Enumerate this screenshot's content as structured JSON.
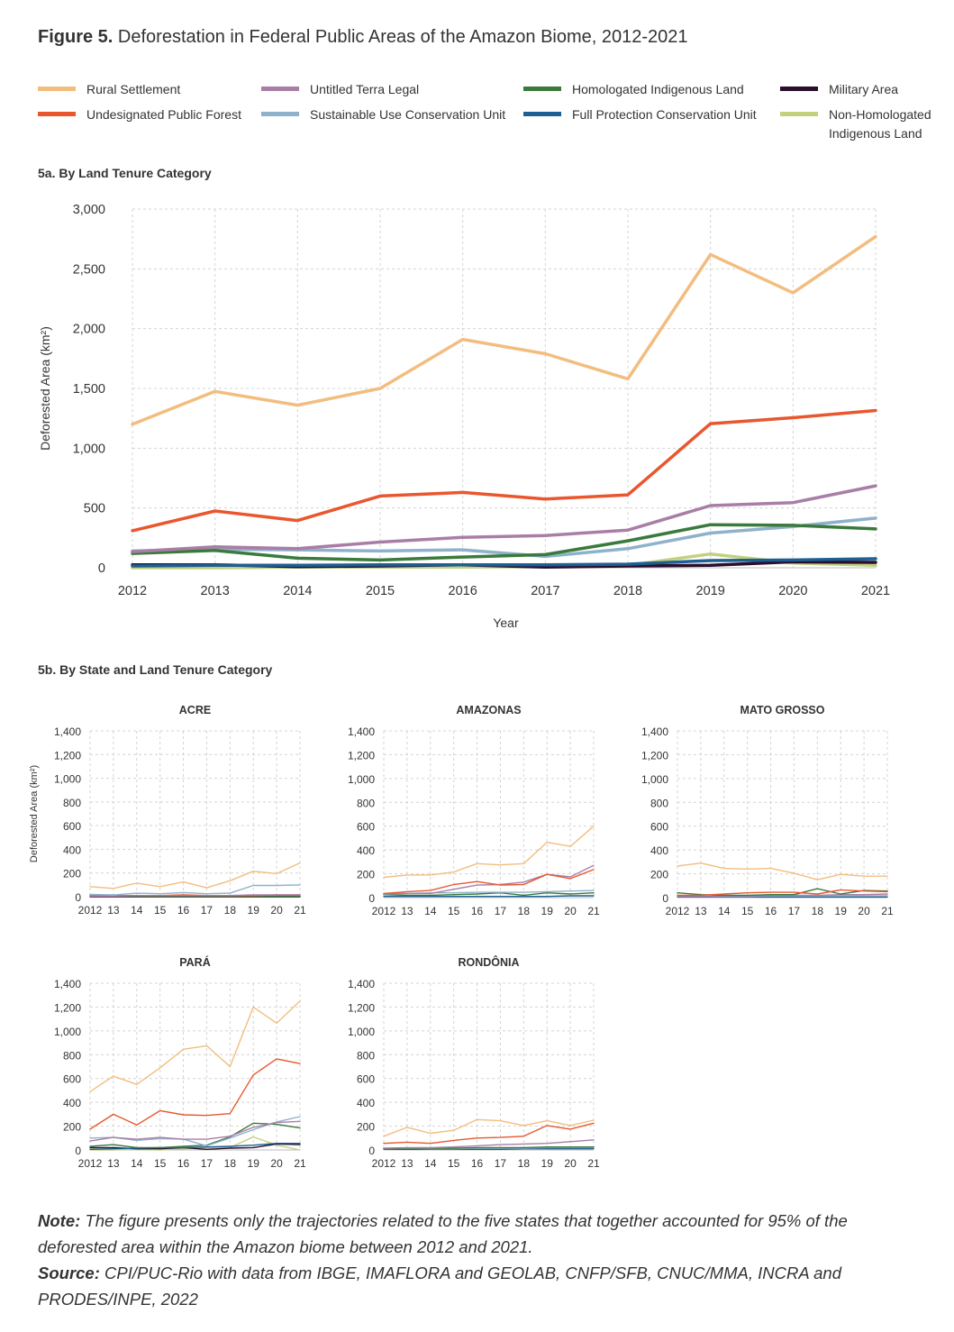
{
  "figure": {
    "label": "Figure 5.",
    "title": "Deforestation in Federal Public Areas of the Amazon Biome, 2012-2021"
  },
  "legend": [
    {
      "name": "Rural Settlement",
      "color": "#f2bd7f"
    },
    {
      "name": "Undesignated Public Forest",
      "color": "#e8572e"
    },
    {
      "name": "Untitled Terra Legal",
      "color": "#a97ea6"
    },
    {
      "name": "Sustainable Use Conservation Unit",
      "color": "#8eb1cc"
    },
    {
      "name": "Homologated Indigenous Land",
      "color": "#3a7a3c"
    },
    {
      "name": "Full Protection Conservation Unit",
      "color": "#1e5f92"
    },
    {
      "name": "Military Area",
      "color": "#2a0e2c"
    },
    {
      "name": "Non-Homologated\nIndigenous Land",
      "color": "#c2d17e"
    }
  ],
  "section_a_title": "5a. By Land Tenure Category",
  "section_b_title": "5b. By State and Land Tenure Category",
  "chart_data": [
    {
      "type": "line",
      "id": "main",
      "title": "",
      "xlabel": "Year",
      "ylabel": "Deforested Area (km²)",
      "ylim": [
        0,
        3000
      ],
      "yticks": [
        0,
        500,
        1000,
        1500,
        2000,
        2500,
        3000
      ],
      "ytick_labels": [
        "0",
        "500",
        "1,000",
        "1,500",
        "2,000",
        "2,500",
        "3,000"
      ],
      "x": [
        2012,
        2013,
        2014,
        2015,
        2016,
        2017,
        2018,
        2019,
        2020,
        2021
      ],
      "x_labels": [
        "2012",
        "2013",
        "2014",
        "2015",
        "2016",
        "2017",
        "2018",
        "2019",
        "2020",
        "2021"
      ],
      "grid": true,
      "series": [
        {
          "name": "Non-Homologated\nIndigenous Land",
          "values": [
            0,
            0,
            5,
            5,
            5,
            10,
            20,
            115,
            40,
            20
          ]
        },
        {
          "name": "Military Area",
          "values": [
            25,
            25,
            10,
            15,
            25,
            5,
            15,
            20,
            50,
            45
          ]
        },
        {
          "name": "Full Protection Conservation Unit",
          "values": [
            15,
            20,
            20,
            25,
            25,
            25,
            30,
            60,
            65,
            75
          ]
        },
        {
          "name": "Sustainable Use Conservation Unit",
          "values": [
            140,
            155,
            150,
            140,
            150,
            95,
            160,
            290,
            345,
            415
          ]
        },
        {
          "name": "Homologated Indigenous Land",
          "values": [
            120,
            145,
            80,
            65,
            90,
            110,
            225,
            360,
            355,
            325
          ]
        },
        {
          "name": "Untitled Terra Legal",
          "values": [
            135,
            175,
            160,
            215,
            255,
            270,
            315,
            520,
            545,
            685
          ]
        },
        {
          "name": "Undesignated Public Forest",
          "values": [
            310,
            475,
            395,
            600,
            630,
            575,
            610,
            1205,
            1255,
            1315
          ]
        },
        {
          "name": "Rural Settlement",
          "values": [
            1200,
            1475,
            1360,
            1500,
            1910,
            1790,
            1580,
            2620,
            2300,
            2770
          ]
        }
      ]
    },
    {
      "type": "line",
      "id": "acre",
      "title": "ACRE",
      "ylabel": "Deforested Area (km²)",
      "ylim": [
        0,
        1400
      ],
      "yticks": [
        0,
        200,
        400,
        600,
        800,
        1000,
        1200,
        1400
      ],
      "ytick_labels": [
        "0",
        "200",
        "400",
        "600",
        "800",
        "1,000",
        "1,200",
        "1,400"
      ],
      "x_labels": [
        "2012",
        "13",
        "14",
        "15",
        "16",
        "17",
        "18",
        "19",
        "20",
        "21"
      ],
      "series": [
        {
          "name": "Military Area",
          "values": [
            0,
            0,
            0,
            0,
            0,
            0,
            0,
            0,
            0,
            0
          ]
        },
        {
          "name": "Full Protection Conservation Unit",
          "values": [
            5,
            5,
            5,
            5,
            5,
            5,
            5,
            5,
            5,
            5
          ]
        },
        {
          "name": "Homologated Indigenous Land",
          "values": [
            5,
            5,
            5,
            5,
            5,
            5,
            5,
            5,
            5,
            5
          ]
        },
        {
          "name": "Undesignated Public Forest",
          "values": [
            10,
            10,
            10,
            10,
            15,
            10,
            10,
            10,
            15,
            15
          ]
        },
        {
          "name": "Untitled Terra Legal",
          "values": [
            5,
            5,
            10,
            10,
            10,
            10,
            10,
            15,
            15,
            15
          ]
        },
        {
          "name": "Sustainable Use Conservation Unit",
          "values": [
            20,
            15,
            30,
            25,
            35,
            25,
            30,
            95,
            95,
            100
          ]
        },
        {
          "name": "Rural Settlement",
          "values": [
            85,
            70,
            115,
            85,
            125,
            75,
            135,
            215,
            195,
            285
          ]
        }
      ]
    },
    {
      "type": "line",
      "id": "amazonas",
      "title": "AMAZONAS",
      "ylim": [
        0,
        1400
      ],
      "yticks": [
        0,
        200,
        400,
        600,
        800,
        1000,
        1200,
        1400
      ],
      "ytick_labels": [
        "0",
        "200",
        "400",
        "600",
        "800",
        "1,000",
        "1,200",
        "1,400"
      ],
      "x_labels": [
        "2012",
        "13",
        "14",
        "15",
        "16",
        "17",
        "18",
        "19",
        "20",
        "21"
      ],
      "series": [
        {
          "name": "Full Protection Conservation Unit",
          "values": [
            10,
            10,
            10,
            10,
            10,
            10,
            10,
            10,
            15,
            15
          ]
        },
        {
          "name": "Homologated Indigenous Land",
          "values": [
            25,
            20,
            20,
            25,
            30,
            40,
            20,
            40,
            30,
            40
          ]
        },
        {
          "name": "Sustainable Use Conservation Unit",
          "values": [
            30,
            35,
            40,
            40,
            45,
            45,
            45,
            50,
            55,
            60
          ]
        },
        {
          "name": "Untitled Terra Legal",
          "values": [
            35,
            35,
            35,
            70,
            105,
            110,
            130,
            195,
            175,
            270
          ]
        },
        {
          "name": "Undesignated Public Forest",
          "values": [
            35,
            50,
            60,
            110,
            135,
            105,
            110,
            195,
            160,
            235
          ]
        },
        {
          "name": "Rural Settlement",
          "values": [
            170,
            190,
            190,
            215,
            285,
            275,
            285,
            465,
            430,
            600
          ]
        }
      ]
    },
    {
      "type": "line",
      "id": "mato-grosso",
      "title": "MATO GROSSO",
      "ylim": [
        0,
        1400
      ],
      "yticks": [
        0,
        200,
        400,
        600,
        800,
        1000,
        1200,
        1400
      ],
      "ytick_labels": [
        "0",
        "200",
        "400",
        "600",
        "800",
        "1,000",
        "1,200",
        "1,400"
      ],
      "x_labels": [
        "2012",
        "13",
        "14",
        "15",
        "16",
        "17",
        "18",
        "19",
        "20",
        "21"
      ],
      "series": [
        {
          "name": "Full Protection Conservation Unit",
          "values": [
            5,
            5,
            5,
            5,
            5,
            5,
            5,
            5,
            5,
            5
          ]
        },
        {
          "name": "Sustainable Use Conservation Unit",
          "values": [
            10,
            10,
            10,
            10,
            15,
            15,
            15,
            15,
            15,
            15
          ]
        },
        {
          "name": "Untitled Terra Legal",
          "values": [
            10,
            10,
            15,
            15,
            20,
            20,
            20,
            25,
            25,
            30
          ]
        },
        {
          "name": "Homologated Indigenous Land",
          "values": [
            40,
            25,
            20,
            20,
            25,
            25,
            75,
            30,
            60,
            55
          ]
        },
        {
          "name": "Undesignated Public Forest",
          "values": [
            20,
            20,
            30,
            40,
            45,
            45,
            30,
            65,
            55,
            50
          ]
        },
        {
          "name": "Rural Settlement",
          "values": [
            265,
            290,
            245,
            240,
            245,
            205,
            150,
            195,
            180,
            180
          ]
        }
      ]
    },
    {
      "type": "line",
      "id": "para",
      "title": "PARÁ",
      "ylim": [
        0,
        1400
      ],
      "yticks": [
        0,
        200,
        400,
        600,
        800,
        1000,
        1200,
        1400
      ],
      "ytick_labels": [
        "0",
        "200",
        "400",
        "600",
        "800",
        "1,000",
        "1,200",
        "1,400"
      ],
      "x_labels": [
        "2012",
        "13",
        "14",
        "15",
        "16",
        "17",
        "18",
        "19",
        "20",
        "21"
      ],
      "series": [
        {
          "name": "Non-Homologated\nIndigenous Land",
          "values": [
            0,
            0,
            5,
            0,
            10,
            20,
            20,
            110,
            40,
            0
          ]
        },
        {
          "name": "Military Area",
          "values": [
            20,
            20,
            10,
            10,
            20,
            5,
            15,
            20,
            50,
            45
          ]
        },
        {
          "name": "Full Protection Conservation Unit",
          "values": [
            5,
            10,
            15,
            20,
            20,
            25,
            30,
            40,
            55,
            55
          ]
        },
        {
          "name": "Homologated Indigenous Land",
          "values": [
            30,
            45,
            20,
            20,
            30,
            40,
            110,
            225,
            215,
            185
          ]
        },
        {
          "name": "Sustainable Use Conservation Unit",
          "values": [
            100,
            105,
            80,
            95,
            90,
            35,
            100,
            170,
            235,
            280
          ]
        },
        {
          "name": "Untitled Terra Legal",
          "values": [
            75,
            105,
            90,
            105,
            90,
            90,
            115,
            190,
            230,
            240
          ]
        },
        {
          "name": "Undesignated Public Forest",
          "values": [
            175,
            300,
            210,
            330,
            295,
            290,
            305,
            630,
            765,
            725
          ]
        },
        {
          "name": "Rural Settlement",
          "values": [
            490,
            620,
            550,
            690,
            845,
            875,
            700,
            1200,
            1065,
            1250
          ]
        }
      ]
    },
    {
      "type": "line",
      "id": "rondonia",
      "title": "RONDÔNIA",
      "ylim": [
        0,
        1400
      ],
      "yticks": [
        0,
        200,
        400,
        600,
        800,
        1000,
        1200,
        1400
      ],
      "ytick_labels": [
        "0",
        "200",
        "400",
        "600",
        "800",
        "1,000",
        "1,200",
        "1,400"
      ],
      "x_labels": [
        "2012",
        "13",
        "14",
        "15",
        "16",
        "17",
        "18",
        "19",
        "20",
        "21"
      ],
      "series": [
        {
          "name": "Full Protection Conservation Unit",
          "values": [
            5,
            5,
            5,
            5,
            5,
            5,
            10,
            10,
            10,
            10
          ]
        },
        {
          "name": "Sustainable Use Conservation Unit",
          "values": [
            10,
            15,
            10,
            10,
            15,
            15,
            15,
            20,
            20,
            20
          ]
        },
        {
          "name": "Homologated Indigenous Land",
          "values": [
            10,
            15,
            15,
            15,
            20,
            20,
            20,
            25,
            25,
            25
          ]
        },
        {
          "name": "Untitled Terra Legal",
          "values": [
            15,
            20,
            20,
            25,
            35,
            45,
            50,
            55,
            70,
            85
          ]
        },
        {
          "name": "Undesignated Public Forest",
          "values": [
            55,
            65,
            55,
            80,
            100,
            105,
            115,
            205,
            175,
            225
          ]
        },
        {
          "name": "Rural Settlement",
          "values": [
            115,
            190,
            140,
            165,
            255,
            245,
            205,
            245,
            205,
            250
          ]
        }
      ]
    }
  ],
  "note": {
    "label": "Note:",
    "text": " The figure presents only the trajectories related to the five states that together accounted for 95% of the deforested area within the Amazon biome between 2012 and 2021."
  },
  "source": {
    "label": "Source:",
    "text": " CPI/PUC-Rio with data from IBGE, IMAFLORA and GEOLAB, CNFP/SFB, CNUC/MMA, INCRA and PRODES/INPE, 2022"
  }
}
